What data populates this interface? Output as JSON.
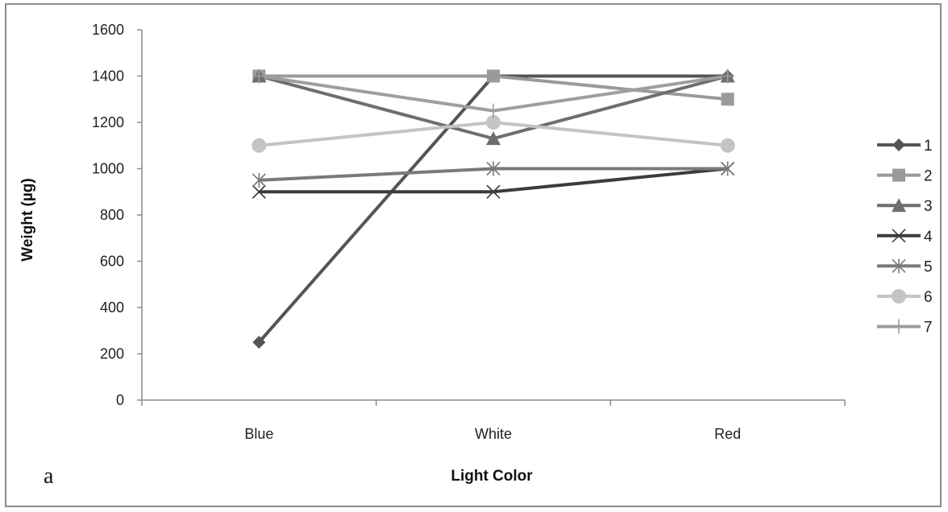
{
  "panel_label": "a",
  "chart_data": {
    "type": "line",
    "categories": [
      "Blue",
      "White",
      "Red"
    ],
    "xlabel": "Light Color",
    "ylabel": "Weight (µg)",
    "ylim": [
      0,
      1600
    ],
    "yticks": [
      0,
      200,
      400,
      600,
      800,
      1000,
      1200,
      1400,
      1600
    ],
    "grid": false,
    "legend_position": "right",
    "series": [
      {
        "name": "1",
        "values": [
          250,
          1400,
          1400
        ],
        "color": "#555555",
        "marker": "diamond"
      },
      {
        "name": "2",
        "values": [
          1400,
          1400,
          1300
        ],
        "color": "#9a9a9a",
        "marker": "square"
      },
      {
        "name": "3",
        "values": [
          1400,
          1130,
          1400
        ],
        "color": "#6e6e6e",
        "marker": "triangle"
      },
      {
        "name": "4",
        "values": [
          900,
          900,
          1000
        ],
        "color": "#3c3c3c",
        "marker": "x"
      },
      {
        "name": "5",
        "values": [
          950,
          1000,
          1000
        ],
        "color": "#7a7a7a",
        "marker": "star"
      },
      {
        "name": "6",
        "values": [
          1100,
          1200,
          1100
        ],
        "color": "#c4c4c4",
        "marker": "circle"
      },
      {
        "name": "7",
        "values": [
          1400,
          1250,
          1400
        ],
        "color": "#9e9e9e",
        "marker": "plus"
      }
    ]
  }
}
